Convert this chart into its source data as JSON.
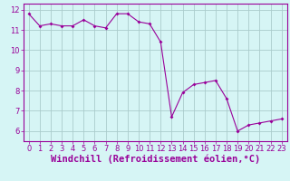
{
  "x": [
    0,
    1,
    2,
    3,
    4,
    5,
    6,
    7,
    8,
    9,
    10,
    11,
    12,
    13,
    14,
    15,
    16,
    17,
    18,
    19,
    20,
    21,
    22,
    23
  ],
  "y": [
    11.8,
    11.2,
    11.3,
    11.2,
    11.2,
    11.5,
    11.2,
    11.1,
    11.8,
    11.8,
    11.4,
    11.3,
    10.4,
    6.7,
    7.9,
    8.3,
    8.4,
    8.5,
    7.6,
    6.0,
    6.3,
    6.4,
    6.5,
    6.6
  ],
  "line_color": "#990099",
  "marker": "D",
  "marker_size": 2,
  "bg_color": "#d6f5f5",
  "grid_color": "#aacccc",
  "xlabel": "Windchill (Refroidissement éolien,°C)",
  "tick_color": "#990099",
  "xlabel_color": "#990099",
  "xlabel_fontsize": 7.5,
  "ylim": [
    5.5,
    12.3
  ],
  "xlim": [
    -0.5,
    23.5
  ],
  "yticks": [
    6,
    7,
    8,
    9,
    10,
    11,
    12
  ],
  "xticks": [
    0,
    1,
    2,
    3,
    4,
    5,
    6,
    7,
    8,
    9,
    10,
    11,
    12,
    13,
    14,
    15,
    16,
    17,
    18,
    19,
    20,
    21,
    22,
    23
  ],
  "tick_fontsize": 6,
  "spine_color": "#990099"
}
